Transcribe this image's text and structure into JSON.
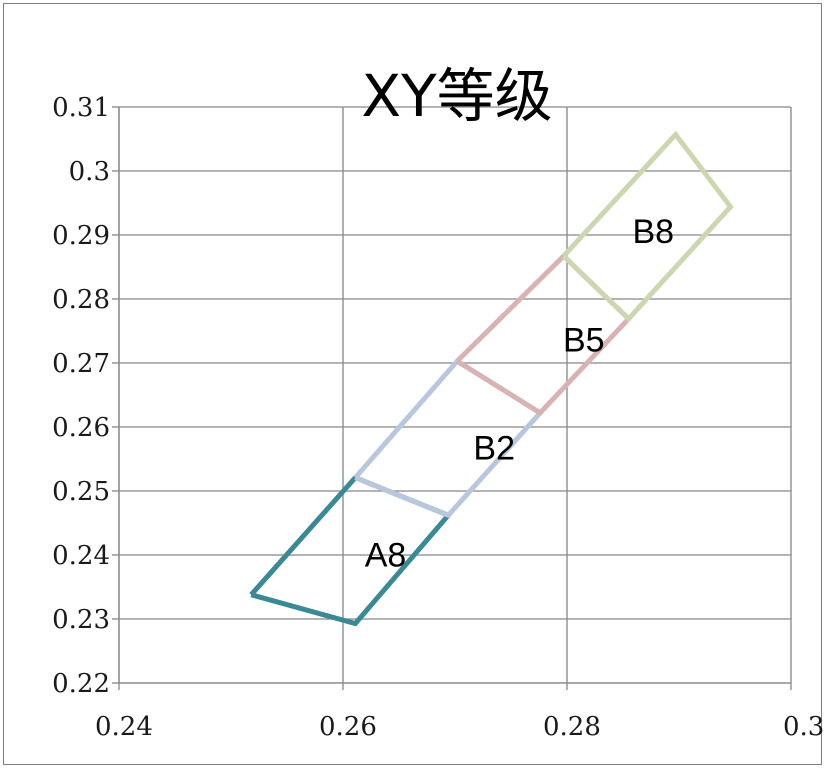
{
  "chart_data": {
    "type": "scatter",
    "title": "XY等级",
    "xlim": [
      0.24,
      0.3
    ],
    "ylim": [
      0.22,
      0.31
    ],
    "x_ticks": [
      {
        "value": 0.24,
        "label": "0.24"
      },
      {
        "value": 0.26,
        "label": "0.26"
      },
      {
        "value": 0.28,
        "label": "0.28"
      },
      {
        "value": 0.3,
        "label": "0.3"
      }
    ],
    "y_ticks": [
      {
        "value": 0.31,
        "label": "0.31"
      },
      {
        "value": 0.3,
        "label": "0.3"
      },
      {
        "value": 0.29,
        "label": "0.29"
      },
      {
        "value": 0.28,
        "label": "0.28"
      },
      {
        "value": 0.27,
        "label": "0.27"
      },
      {
        "value": 0.26,
        "label": "0.26"
      },
      {
        "value": 0.25,
        "label": "0.25"
      },
      {
        "value": 0.24,
        "label": "0.24"
      },
      {
        "value": 0.23,
        "label": "0.23"
      },
      {
        "value": 0.22,
        "label": "0.22"
      }
    ],
    "grid": {
      "vertical": true,
      "horizontal": true
    },
    "legend": "none",
    "series": [
      {
        "name": "A8",
        "color": "#3a8a96",
        "label_at": [
          0.2638,
          0.2401
        ],
        "points": [
          [
            0.2518,
            0.2338
          ],
          [
            0.2611,
            0.2293
          ],
          [
            0.2694,
            0.2462
          ],
          [
            0.2611,
            0.2521
          ],
          [
            0.2518,
            0.2338
          ]
        ]
      },
      {
        "name": "B2",
        "color": "#b8c7dc",
        "label_at": [
          0.2735,
          0.2568
        ],
        "points": [
          [
            0.2611,
            0.2521
          ],
          [
            0.2694,
            0.2462
          ],
          [
            0.2776,
            0.2622
          ],
          [
            0.2702,
            0.2703
          ],
          [
            0.2611,
            0.2521
          ]
        ]
      },
      {
        "name": "B5",
        "color": "#d8b3b3",
        "label_at": [
          0.2815,
          0.2737
        ],
        "points": [
          [
            0.2702,
            0.2703
          ],
          [
            0.2776,
            0.2622
          ],
          [
            0.2855,
            0.2769
          ],
          [
            0.2797,
            0.2867
          ],
          [
            0.2702,
            0.2703
          ]
        ]
      },
      {
        "name": "B8",
        "color": "#ccd7b1",
        "label_at": [
          0.2877,
          0.2906
        ],
        "points": [
          [
            0.2797,
            0.2867
          ],
          [
            0.2855,
            0.2769
          ],
          [
            0.2946,
            0.2944
          ],
          [
            0.2897,
            0.3057
          ],
          [
            0.2797,
            0.2867
          ]
        ]
      }
    ]
  }
}
